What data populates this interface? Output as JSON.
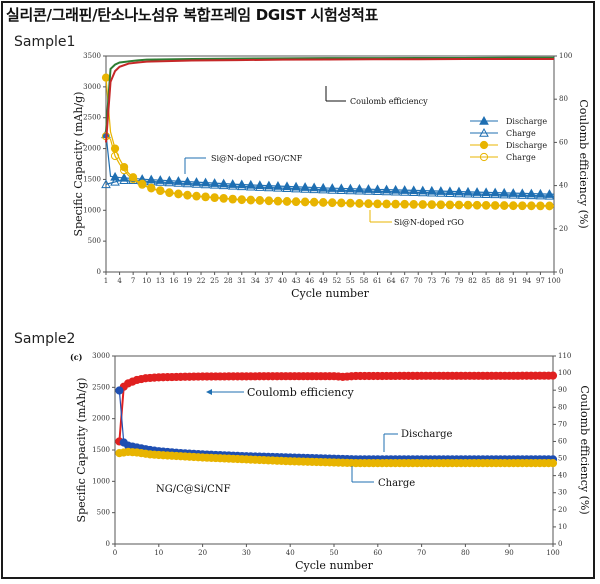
{
  "header": {
    "title": "실리콘/그래핀/탄소나노섬유 복합프레임 DGIST 시험성적표"
  },
  "sample1": {
    "label": "Sample1"
  },
  "sample2": {
    "label": "Sample2"
  },
  "chart_data": [
    {
      "type": "line",
      "xlabel": "Cycle number",
      "ylabel": "Specific Capacity (mAh/g)",
      "y2label": "Coulomb efficiency (%)",
      "xlim": [
        1,
        100
      ],
      "ylim": [
        0,
        3500
      ],
      "y2lim": [
        0,
        100
      ],
      "x_ticks": [
        "1",
        "4",
        "7",
        "10",
        "13",
        "16",
        "19",
        "22",
        "25",
        "28",
        "31",
        "34",
        "37",
        "40",
        "43",
        "46",
        "49",
        "52",
        "55",
        "58",
        "61",
        "64",
        "67",
        "70",
        "73",
        "76",
        "79",
        "82",
        "85",
        "88",
        "91",
        "94",
        "97",
        "100"
      ],
      "y_ticks": [
        "0",
        "500",
        "1000",
        "1500",
        "2000",
        "2500",
        "3000",
        "3500"
      ],
      "y2_ticks": [
        "0",
        "20",
        "40",
        "60",
        "80",
        "100"
      ],
      "legend": {
        "position": "right",
        "entries": [
          {
            "label": "Discharge",
            "color": "#1f6fb2",
            "marker": "filled-triangle"
          },
          {
            "label": "Charge",
            "color": "#1f6fb2",
            "marker": "open-triangle"
          },
          {
            "label": "Discharge",
            "color": "#e8b400",
            "marker": "filled-circle"
          },
          {
            "label": "Charge",
            "color": "#e8b400",
            "marker": "open-circle"
          }
        ]
      },
      "annotations": [
        {
          "text": "Coulomb efficiency",
          "at": [
            55,
            2960
          ]
        },
        {
          "text": "Si@N-doped rGO/CNF",
          "at": [
            25,
            1520
          ]
        },
        {
          "text": "Si@N-doped rGO",
          "at": [
            70,
            920
          ]
        }
      ],
      "series": [
        {
          "name": "Si@N-doped rGO/CNF Discharge",
          "axis": "left",
          "color": "#1f6fb2",
          "x": [
            1,
            2,
            3,
            4,
            6,
            8,
            10,
            15,
            20,
            25,
            30,
            40,
            50,
            60,
            70,
            80,
            90,
            100
          ],
          "y": [
            2230,
            1550,
            1540,
            1530,
            1520,
            1510,
            1500,
            1480,
            1460,
            1440,
            1420,
            1390,
            1360,
            1340,
            1320,
            1300,
            1280,
            1260
          ]
        },
        {
          "name": "Si@N-doped rGO/CNF Charge",
          "axis": "left",
          "color": "#1f6fb2",
          "x": [
            1,
            2,
            3,
            4,
            6,
            8,
            10,
            15,
            20,
            25,
            30,
            40,
            50,
            60,
            70,
            80,
            90,
            100
          ],
          "y": [
            1420,
            1440,
            1460,
            1480,
            1490,
            1480,
            1470,
            1450,
            1430,
            1410,
            1390,
            1360,
            1330,
            1310,
            1290,
            1270,
            1250,
            1230
          ]
        },
        {
          "name": "Si@N-doped rGO Discharge",
          "axis": "left",
          "color": "#e8b400",
          "x": [
            1,
            2,
            3,
            4,
            5,
            6,
            8,
            10,
            12,
            15,
            20,
            25,
            30,
            40,
            50,
            60,
            70,
            80,
            90,
            100
          ],
          "y": [
            3150,
            2270,
            2000,
            1830,
            1700,
            1600,
            1470,
            1390,
            1340,
            1290,
            1240,
            1210,
            1180,
            1150,
            1130,
            1110,
            1100,
            1090,
            1080,
            1075
          ]
        },
        {
          "name": "Si@N-doped rGO Charge",
          "axis": "left",
          "color": "#e8b400",
          "x": [
            1,
            2,
            3,
            4,
            5,
            6,
            8,
            10,
            12,
            15,
            20,
            25,
            30,
            40,
            50,
            60,
            70,
            80,
            90,
            100
          ],
          "y": [
            2200,
            2150,
            1880,
            1750,
            1650,
            1560,
            1450,
            1380,
            1330,
            1280,
            1230,
            1200,
            1170,
            1140,
            1120,
            1100,
            1090,
            1080,
            1070,
            1065
          ]
        },
        {
          "name": "Coulomb efficiency (Si@N-doped rGO/CNF)",
          "axis": "right",
          "color": "#2e7d32",
          "x": [
            1,
            2,
            3,
            4,
            6,
            8,
            10,
            20,
            30,
            40,
            50,
            60,
            70,
            80,
            90,
            100
          ],
          "y": [
            65,
            94,
            96,
            97,
            97.5,
            98,
            98.3,
            98.6,
            98.8,
            98.9,
            99,
            99,
            99.1,
            99.1,
            99.2,
            99.2
          ]
        },
        {
          "name": "Coulomb efficiency (Si@N-doped rGO)",
          "axis": "right",
          "color": "#c62828",
          "x": [
            1,
            2,
            3,
            4,
            6,
            8,
            10,
            20,
            30,
            40,
            50,
            60,
            70,
            80,
            90,
            100
          ],
          "y": [
            60,
            88,
            93,
            95,
            96.5,
            97,
            97.4,
            97.9,
            98.1,
            98.3,
            98.4,
            98.5,
            98.5,
            98.6,
            98.6,
            98.6
          ]
        }
      ]
    },
    {
      "type": "line",
      "panel_label": "(c)",
      "xlabel": "Cycle number",
      "ylabel": "Specific Capacity (mAh/g)",
      "y2label": "Coulomb efficiency (%)",
      "xlim": [
        0,
        100
      ],
      "ylim": [
        0,
        3000
      ],
      "y2lim": [
        0,
        110
      ],
      "x_ticks": [
        "0",
        "10",
        "20",
        "30",
        "40",
        "50",
        "60",
        "70",
        "80",
        "90",
        "100"
      ],
      "y_ticks": [
        "0",
        "500",
        "1000",
        "1500",
        "2000",
        "2500",
        "3000"
      ],
      "y2_ticks": [
        "0",
        "10",
        "20",
        "30",
        "40",
        "50",
        "60",
        "70",
        "80",
        "90",
        "100",
        "110"
      ],
      "annotations": [
        {
          "text": "Coulomb efficiency",
          "at": [
            30,
            2450
          ]
        },
        {
          "text": "Discharge",
          "at": [
            65,
            1800
          ]
        },
        {
          "text": "Charge",
          "at": [
            60,
            1020
          ]
        },
        {
          "text": "NG/C@Si/CNF",
          "at": [
            14,
            860
          ]
        }
      ],
      "series": [
        {
          "name": "Coulomb efficiency",
          "axis": "right",
          "color": "#e02020",
          "x": [
            1,
            2,
            3,
            5,
            7,
            10,
            15,
            20,
            30,
            40,
            50,
            52,
            55,
            60,
            70,
            80,
            90,
            100
          ],
          "y": [
            60,
            92,
            94,
            96,
            97,
            97.5,
            97.8,
            98,
            98.1,
            98.2,
            98.2,
            97.8,
            98.3,
            98.3,
            98.4,
            98.4,
            98.4,
            98.5
          ]
        },
        {
          "name": "Discharge",
          "axis": "left",
          "color": "#1f4fb2",
          "x": [
            1,
            2,
            3,
            5,
            8,
            10,
            15,
            20,
            30,
            40,
            50,
            55,
            60,
            70,
            80,
            90,
            100
          ],
          "y": [
            2450,
            1620,
            1570,
            1540,
            1500,
            1480,
            1450,
            1430,
            1400,
            1380,
            1360,
            1350,
            1350,
            1350,
            1350,
            1350,
            1350
          ]
        },
        {
          "name": "Charge",
          "axis": "left",
          "color": "#e8b400",
          "x": [
            1,
            2,
            3,
            5,
            8,
            10,
            15,
            20,
            30,
            40,
            50,
            55,
            60,
            70,
            80,
            90,
            100
          ],
          "y": [
            1450,
            1460,
            1470,
            1460,
            1430,
            1420,
            1400,
            1380,
            1350,
            1320,
            1300,
            1290,
            1290,
            1290,
            1290,
            1290,
            1290
          ]
        }
      ]
    }
  ]
}
